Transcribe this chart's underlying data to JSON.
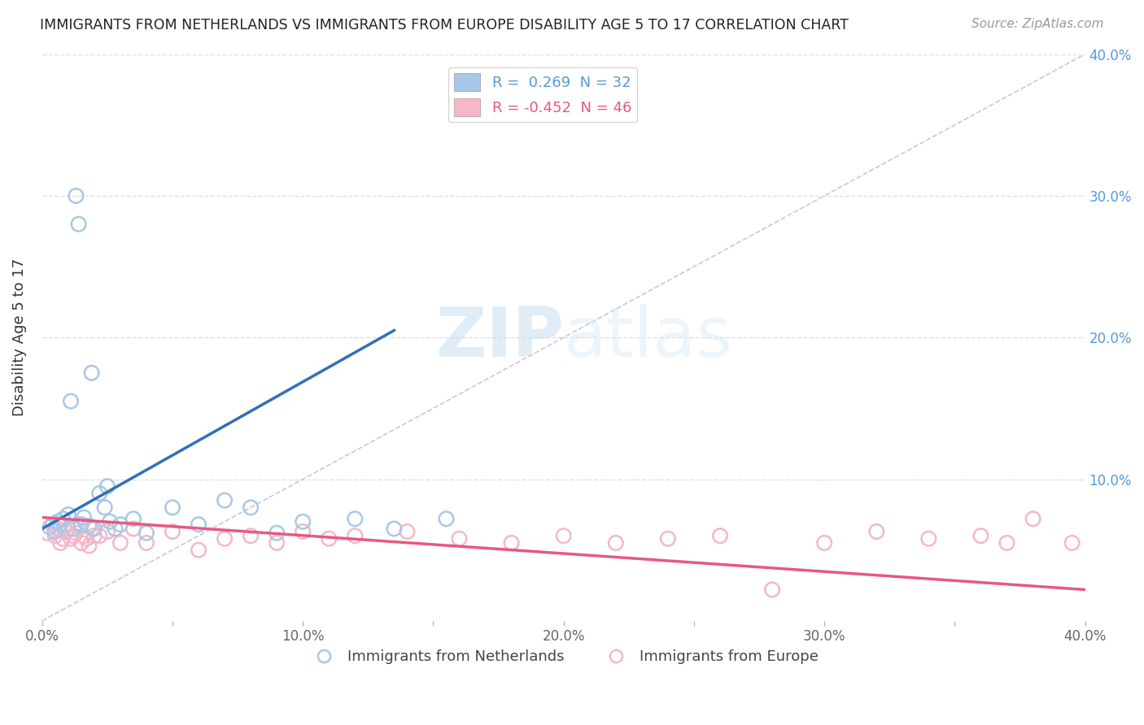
{
  "title": "IMMIGRANTS FROM NETHERLANDS VS IMMIGRANTS FROM EUROPE DISABILITY AGE 5 TO 17 CORRELATION CHART",
  "source": "Source: ZipAtlas.com",
  "ylabel": "Disability Age 5 to 17",
  "xlim": [
    0.0,
    0.4
  ],
  "ylim": [
    0.0,
    0.4
  ],
  "xtick_labels": [
    "0.0%",
    "",
    "10.0%",
    "",
    "20.0%",
    "",
    "30.0%",
    "",
    "40.0%"
  ],
  "xtick_vals": [
    0.0,
    0.05,
    0.1,
    0.15,
    0.2,
    0.25,
    0.3,
    0.35,
    0.4
  ],
  "ytick_right_labels": [
    "10.0%",
    "20.0%",
    "30.0%",
    "40.0%"
  ],
  "ytick_vals": [
    0.1,
    0.2,
    0.3,
    0.4
  ],
  "legend_blue_label": "R =  0.269  N = 32",
  "legend_pink_label": "R = -0.452  N = 46",
  "blue_color": "#a8c8e8",
  "pink_color": "#f4b8c8",
  "blue_line_color": "#3070b8",
  "pink_line_color": "#e85880",
  "diagonal_color": "#c8c8d8",
  "watermark_color": "#d8eaf8",
  "blue_scatter_x": [
    0.003,
    0.005,
    0.006,
    0.007,
    0.008,
    0.01,
    0.011,
    0.012,
    0.013,
    0.014,
    0.015,
    0.016,
    0.018,
    0.019,
    0.02,
    0.022,
    0.024,
    0.025,
    0.026,
    0.028,
    0.03,
    0.035,
    0.04,
    0.05,
    0.06,
    0.07,
    0.08,
    0.09,
    0.1,
    0.12,
    0.135,
    0.155
  ],
  "blue_scatter_y": [
    0.066,
    0.063,
    0.07,
    0.068,
    0.072,
    0.075,
    0.155,
    0.065,
    0.3,
    0.28,
    0.068,
    0.073,
    0.067,
    0.175,
    0.065,
    0.09,
    0.08,
    0.095,
    0.07,
    0.065,
    0.068,
    0.072,
    0.062,
    0.08,
    0.068,
    0.085,
    0.08,
    0.062,
    0.07,
    0.072,
    0.065,
    0.072
  ],
  "pink_scatter_x": [
    0.002,
    0.004,
    0.005,
    0.006,
    0.007,
    0.008,
    0.009,
    0.01,
    0.011,
    0.012,
    0.013,
    0.014,
    0.015,
    0.016,
    0.017,
    0.018,
    0.019,
    0.02,
    0.022,
    0.025,
    0.03,
    0.035,
    0.04,
    0.05,
    0.06,
    0.07,
    0.08,
    0.09,
    0.1,
    0.11,
    0.12,
    0.14,
    0.16,
    0.18,
    0.2,
    0.22,
    0.24,
    0.26,
    0.28,
    0.3,
    0.32,
    0.34,
    0.36,
    0.37,
    0.38,
    0.395
  ],
  "pink_scatter_y": [
    0.062,
    0.068,
    0.06,
    0.065,
    0.055,
    0.058,
    0.063,
    0.065,
    0.058,
    0.06,
    0.062,
    0.068,
    0.055,
    0.06,
    0.058,
    0.053,
    0.065,
    0.06,
    0.06,
    0.063,
    0.055,
    0.065,
    0.055,
    0.063,
    0.05,
    0.058,
    0.06,
    0.055,
    0.063,
    0.058,
    0.06,
    0.063,
    0.058,
    0.055,
    0.06,
    0.055,
    0.058,
    0.06,
    0.022,
    0.055,
    0.063,
    0.058,
    0.06,
    0.055,
    0.072,
    0.055
  ],
  "blue_trend_x": [
    0.0,
    0.135
  ],
  "blue_trend_y": [
    0.065,
    0.205
  ],
  "pink_trend_x": [
    0.0,
    0.4
  ],
  "pink_trend_y": [
    0.073,
    0.022
  ]
}
